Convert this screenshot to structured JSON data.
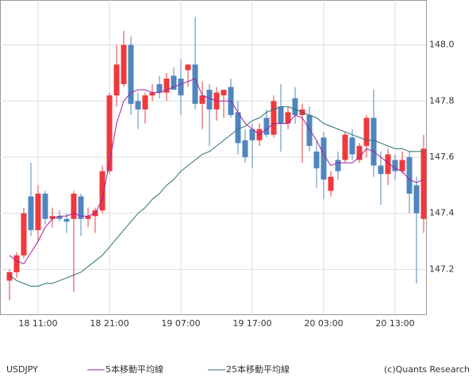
{
  "chart_data": {
    "type": "candlestick",
    "symbol": "USDJPY",
    "credit": "(c)Quants Research",
    "up_color": "#f0383c",
    "down_color": "#4f86bf",
    "grid": true,
    "xlim": [
      -1.33,
      58.33
    ],
    "xticks": [
      {
        "value": 4,
        "label": "18 11:00"
      },
      {
        "value": 14,
        "label": "18 21:00"
      },
      {
        "value": 24,
        "label": "19 07:00"
      },
      {
        "value": 34,
        "label": "19 17:00"
      },
      {
        "value": 44,
        "label": "20 03:00"
      },
      {
        "value": 54,
        "label": "20 13:00"
      }
    ],
    "ylim": [
      147.04,
      148.16
    ],
    "yticks": [
      147.2,
      147.4,
      147.6,
      147.8,
      {
        "value": 148,
        "label": "148.0"
      }
    ],
    "candles": {
      "open": [
        147.16,
        147.19,
        147.25,
        147.46,
        147.34,
        147.47,
        147.38,
        147.39,
        147.38,
        147.38,
        147.46,
        147.38,
        147.39,
        147.41,
        147.55,
        147.82,
        147.86,
        148.0,
        147.8,
        147.77,
        147.82,
        147.86,
        147.83,
        147.89,
        147.88,
        147.91,
        147.93,
        147.79,
        147.84,
        147.77,
        147.82,
        147.85,
        147.76,
        147.66,
        147.7,
        147.66,
        147.74,
        147.68,
        147.78,
        147.72,
        147.81,
        147.75,
        147.75,
        147.62,
        147.67,
        147.48,
        147.59,
        147.59,
        147.67,
        147.59,
        147.64,
        147.74,
        147.57,
        147.54,
        147.59,
        147.55,
        147.6,
        147.5,
        147.38
      ],
      "high": [
        147.2,
        147.26,
        147.42,
        147.58,
        147.5,
        147.48,
        147.42,
        147.41,
        147.4,
        147.48,
        147.47,
        147.42,
        147.42,
        147.57,
        147.83,
        148.0,
        148.05,
        148.03,
        147.83,
        147.83,
        147.86,
        147.89,
        147.9,
        147.92,
        147.95,
        147.93,
        148.1,
        147.87,
        147.86,
        147.85,
        147.84,
        147.88,
        147.8,
        147.7,
        147.72,
        147.72,
        147.77,
        147.82,
        147.86,
        147.78,
        147.85,
        147.79,
        147.78,
        147.66,
        147.69,
        147.55,
        147.62,
        147.69,
        147.7,
        147.65,
        147.75,
        147.84,
        147.62,
        147.63,
        147.61,
        147.62,
        147.62,
        147.53,
        147.68
      ],
      "low": [
        147.09,
        147.17,
        147.24,
        147.32,
        147.3,
        147.36,
        147.35,
        147.37,
        147.33,
        147.12,
        147.32,
        147.35,
        147.33,
        147.4,
        147.54,
        147.78,
        147.85,
        147.75,
        147.7,
        147.72,
        147.8,
        147.81,
        147.8,
        147.84,
        147.75,
        147.85,
        147.77,
        147.7,
        147.64,
        147.73,
        147.74,
        147.74,
        147.61,
        147.58,
        147.56,
        147.64,
        147.67,
        147.67,
        147.62,
        147.7,
        147.72,
        147.58,
        147.62,
        147.49,
        147.45,
        147.46,
        147.52,
        147.58,
        147.59,
        147.58,
        147.6,
        147.53,
        147.43,
        147.5,
        147.52,
        147.54,
        147.4,
        147.15,
        147.33
      ],
      "close": [
        147.19,
        147.25,
        147.4,
        147.34,
        147.47,
        147.38,
        147.39,
        147.38,
        147.37,
        147.47,
        147.38,
        147.39,
        147.41,
        147.55,
        147.82,
        147.93,
        148.0,
        147.79,
        147.77,
        147.82,
        147.83,
        147.83,
        147.88,
        147.84,
        147.82,
        147.93,
        147.79,
        147.82,
        147.77,
        147.83,
        147.84,
        147.75,
        147.65,
        147.6,
        147.66,
        147.7,
        147.68,
        147.8,
        147.72,
        147.76,
        147.75,
        147.77,
        147.64,
        147.56,
        147.52,
        147.53,
        147.55,
        147.68,
        147.61,
        147.64,
        147.74,
        147.57,
        147.54,
        147.61,
        147.55,
        147.59,
        147.47,
        147.4,
        147.63
      ]
    },
    "series": [
      {
        "name": "5本移動平均線",
        "color": "#a020a0",
        "values": [
          147.25,
          147.23,
          147.22,
          147.26,
          147.3,
          147.35,
          147.38,
          147.39,
          147.39,
          147.4,
          147.39,
          147.39,
          147.4,
          147.45,
          147.58,
          147.72,
          147.8,
          147.83,
          147.84,
          147.84,
          147.83,
          147.83,
          147.84,
          147.85,
          147.86,
          147.87,
          147.88,
          147.82,
          147.81,
          147.8,
          147.8,
          147.8,
          147.76,
          147.72,
          147.7,
          147.68,
          147.7,
          147.72,
          147.72,
          147.72,
          147.75,
          147.74,
          147.7,
          147.66,
          147.61,
          147.57,
          147.58,
          147.58,
          147.58,
          147.6,
          147.63,
          147.62,
          147.6,
          147.58,
          147.56,
          147.55,
          147.52,
          147.51,
          147.52
        ]
      },
      {
        "name": "25本移動平均線",
        "color": "#2a6f6f",
        "values": [
          147.18,
          147.16,
          147.15,
          147.14,
          147.14,
          147.15,
          147.15,
          147.16,
          147.17,
          147.18,
          147.19,
          147.21,
          147.23,
          147.25,
          147.28,
          147.31,
          147.34,
          147.37,
          147.4,
          147.42,
          147.45,
          147.47,
          147.5,
          147.52,
          147.55,
          147.57,
          147.59,
          147.61,
          147.62,
          147.64,
          147.66,
          147.68,
          147.7,
          147.71,
          147.73,
          147.74,
          147.76,
          147.77,
          147.78,
          147.78,
          147.77,
          147.76,
          147.75,
          147.74,
          147.72,
          147.71,
          147.7,
          147.69,
          147.68,
          147.67,
          147.66,
          147.66,
          147.65,
          147.64,
          147.63,
          147.63,
          147.62,
          147.62,
          147.62
        ]
      }
    ]
  }
}
